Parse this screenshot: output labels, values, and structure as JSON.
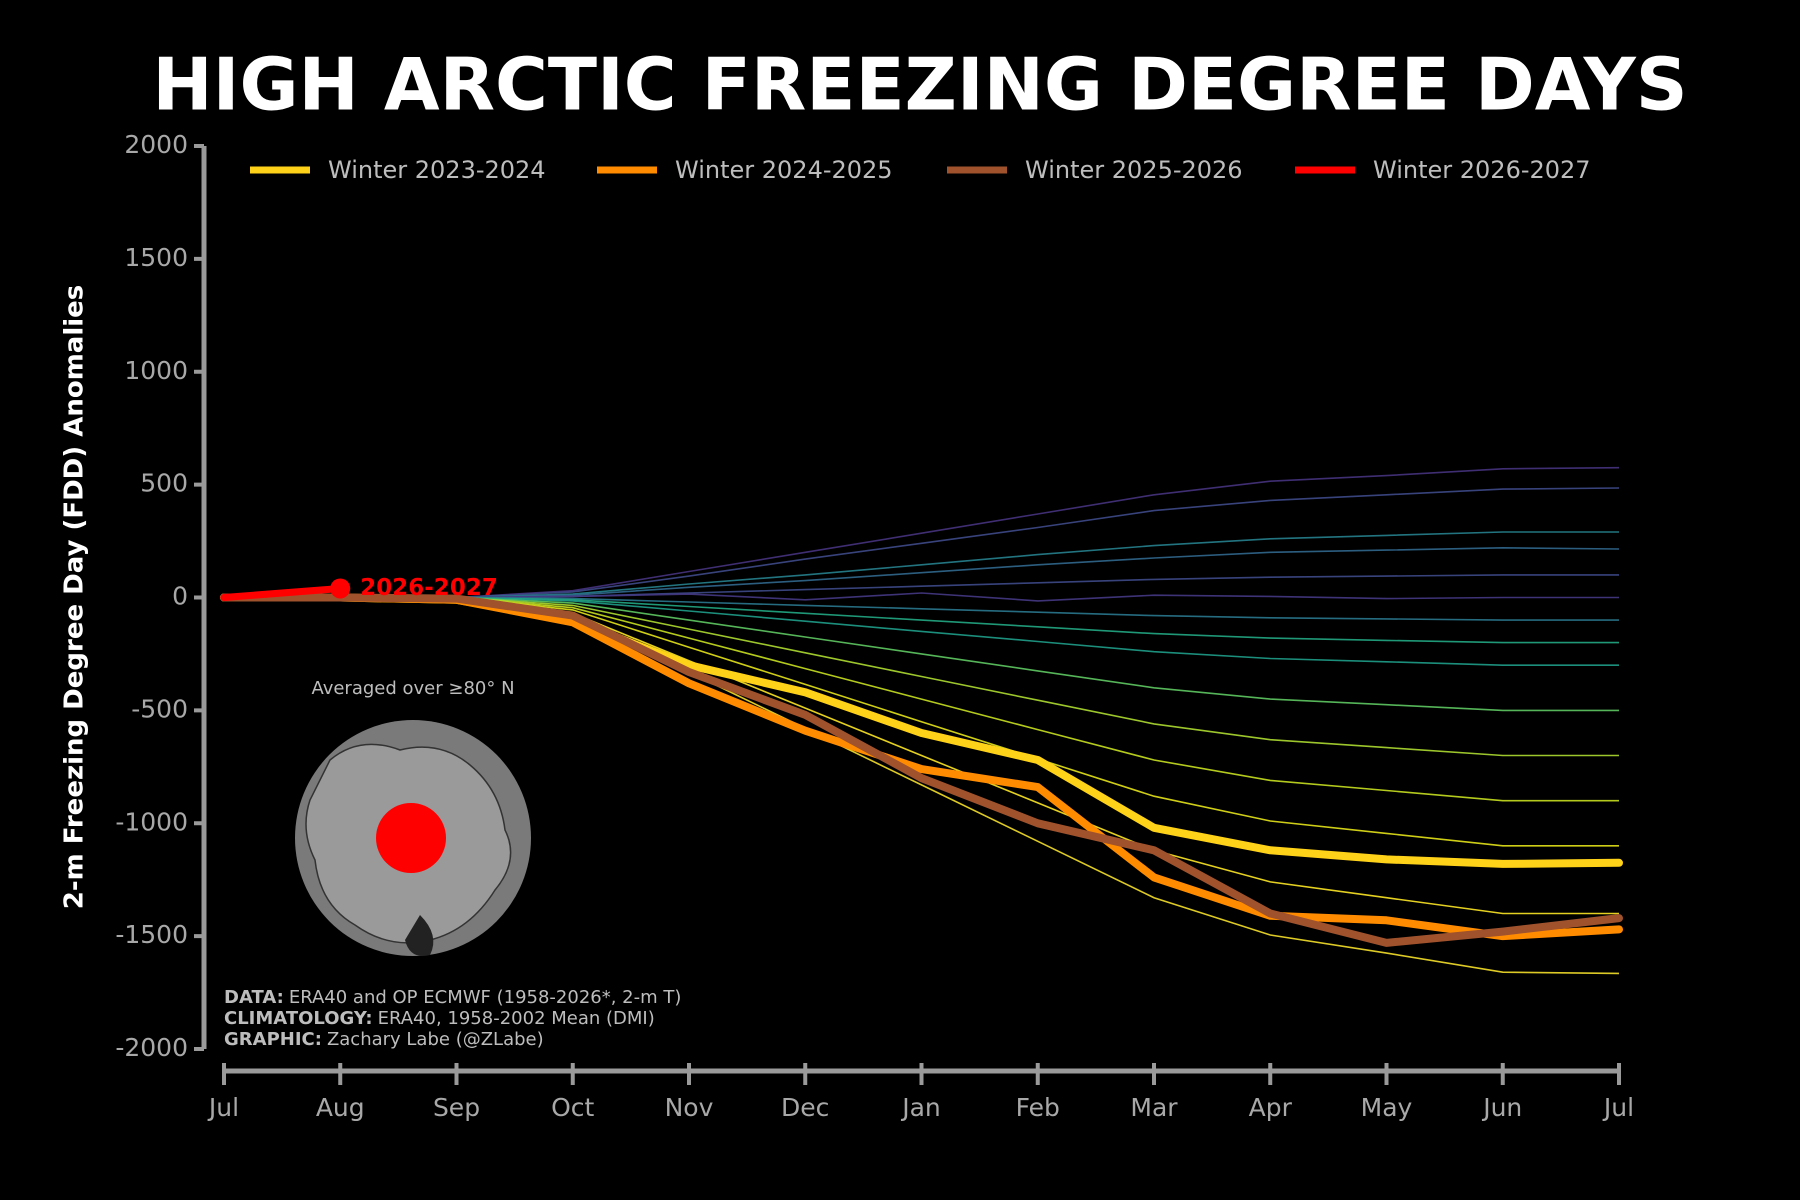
{
  "chart_data": {
    "type": "line",
    "title": "HIGH ARCTIC FREEZING DEGREE DAYS",
    "y_label": "2-m Freezing Degree Day (FDD) Anomalies",
    "categories": [
      "Jul",
      "Aug",
      "Sep",
      "Oct",
      "Nov",
      "Dec",
      "Jan",
      "Feb",
      "Mar",
      "Apr",
      "May",
      "Jun",
      "Jul"
    ],
    "ylim": [
      -2000,
      2000
    ],
    "yticks": [
      -2000,
      -1500,
      -1000,
      -500,
      0,
      500,
      1000,
      1500,
      2000
    ],
    "background_lines": [
      {
        "color": "#46337e",
        "values": [
          0,
          0,
          0,
          30,
          115,
          200,
          285,
          370,
          455,
          515,
          540,
          570,
          575
        ]
      },
      {
        "color": "#3e4a89",
        "values": [
          0,
          0,
          0,
          25,
          95,
          170,
          240,
          310,
          385,
          430,
          455,
          480,
          485
        ]
      },
      {
        "color": "#26828e",
        "values": [
          0,
          0,
          0,
          15,
          60,
          100,
          145,
          190,
          230,
          260,
          275,
          290,
          290
        ]
      },
      {
        "color": "#31688e",
        "values": [
          0,
          0,
          0,
          10,
          45,
          75,
          110,
          145,
          175,
          200,
          210,
          220,
          215
        ]
      },
      {
        "color": "#3e4a89",
        "values": [
          0,
          0,
          0,
          5,
          20,
          35,
          50,
          65,
          80,
          90,
          95,
          100,
          100
        ]
      },
      {
        "color": "#443983",
        "values": [
          0,
          0,
          0,
          5,
          15,
          -10,
          20,
          -15,
          10,
          5,
          -5,
          0,
          0
        ]
      },
      {
        "color": "#2a788e",
        "values": [
          0,
          0,
          0,
          -5,
          -20,
          -35,
          -50,
          -65,
          -80,
          -90,
          -95,
          -100,
          -100
        ]
      },
      {
        "color": "#22a884",
        "values": [
          0,
          0,
          0,
          -10,
          -40,
          -70,
          -100,
          -130,
          -160,
          -180,
          -190,
          -200,
          -200
        ]
      },
      {
        "color": "#1f9e89",
        "values": [
          0,
          0,
          0,
          -15,
          -60,
          -105,
          -150,
          -195,
          -240,
          -270,
          -285,
          -300,
          -300
        ]
      },
      {
        "color": "#5ec962",
        "values": [
          0,
          0,
          0,
          -25,
          -100,
          -175,
          -250,
          -325,
          -400,
          -450,
          -475,
          -500,
          -500
        ]
      },
      {
        "color": "#addc30",
        "values": [
          0,
          0,
          0,
          -35,
          -140,
          -245,
          -350,
          -455,
          -560,
          -630,
          -665,
          -700,
          -700
        ]
      },
      {
        "color": "#c8e020",
        "values": [
          0,
          0,
          0,
          -45,
          -180,
          -315,
          -450,
          -585,
          -720,
          -810,
          -855,
          -900,
          -900
        ]
      },
      {
        "color": "#e5e419",
        "values": [
          0,
          0,
          0,
          -55,
          -220,
          -385,
          -550,
          -715,
          -880,
          -990,
          -1045,
          -1100,
          -1100
        ]
      },
      {
        "color": "#fde725",
        "values": [
          0,
          0,
          0,
          -70,
          -280,
          -490,
          -700,
          -910,
          -1120,
          -1260,
          -1330,
          -1400,
          -1400
        ]
      },
      {
        "color": "#f5e02a",
        "values": [
          0,
          0,
          0,
          -85,
          -330,
          -580,
          -830,
          -1080,
          -1330,
          -1495,
          -1575,
          -1660,
          -1665
        ]
      }
    ],
    "series": [
      {
        "name": "Winter 2023-2024",
        "color": "#ffd21a",
        "values": [
          0,
          0,
          -10,
          -100,
          -300,
          -420,
          -600,
          -720,
          -1020,
          -1120,
          -1160,
          -1180,
          -1175
        ]
      },
      {
        "name": "Winter 2024-2025",
        "color": "#ff8c00",
        "values": [
          0,
          0,
          -10,
          -110,
          -380,
          -590,
          -760,
          -840,
          -1240,
          -1410,
          -1430,
          -1500,
          -1470
        ]
      },
      {
        "name": "Winter 2025-2026",
        "color": "#a0522d",
        "values": [
          0,
          0,
          -5,
          -80,
          -330,
          -520,
          -800,
          -1000,
          -1120,
          -1400,
          -1530,
          -1480,
          -1420
        ]
      },
      {
        "name": "Winter 2026-2027",
        "color": "#ff0000",
        "values": [
          0,
          40,
          null,
          null,
          null,
          null,
          null,
          null,
          null,
          null,
          null,
          null,
          null
        ]
      }
    ],
    "annotation": "2026-2027",
    "map_caption": "Averaged over ≥80° N",
    "notes": [
      {
        "label": "DATA:",
        "text": "ERA40 and OP ECMWF (1958-2026*, 2-m T)"
      },
      {
        "label": "CLIMATOLOGY:",
        "text": "ERA40, 1958-2002 Mean (DMI)"
      },
      {
        "label": "GRAPHIC:",
        "text": "Zachary Labe (@ZLabe)"
      }
    ]
  }
}
